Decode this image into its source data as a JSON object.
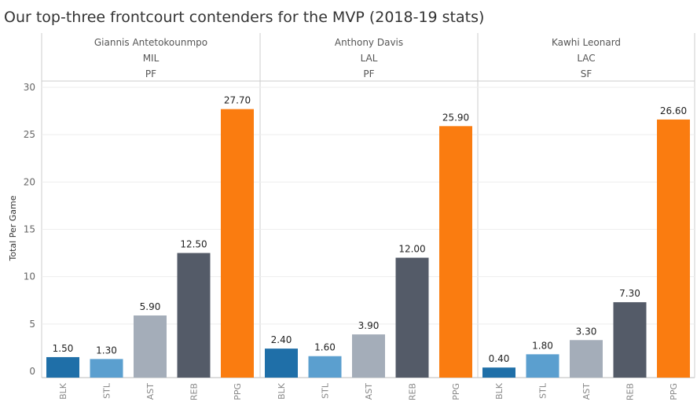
{
  "title": "Our top-three frontcourt contenders for the MVP (2018-19 stats)",
  "chart_data": {
    "type": "bar",
    "title": "Our top-three frontcourt contenders for the MVP (2018-19 stats)",
    "ylabel": "Total Per Game",
    "ylim": [
      0,
      30
    ],
    "yticks": [
      0,
      5,
      10,
      15,
      20,
      25,
      30
    ],
    "ytick_labels": [
      "0",
      "5",
      "10",
      "15",
      "20",
      "25",
      "30"
    ],
    "grid": true,
    "categories": [
      "BLK",
      "STL",
      "AST",
      "REB",
      "PPG"
    ],
    "colors": [
      "#1f6fa8",
      "#5b9fcf",
      "#a4adb9",
      "#545b68",
      "#fa7c10"
    ],
    "panels": [
      {
        "player": "Giannis Antetokounmpo",
        "team": "MIL",
        "position": "PF",
        "values": [
          1.5,
          1.3,
          5.9,
          12.5,
          27.7
        ],
        "labels": [
          "1.50",
          "1.30",
          "5.90",
          "12.50",
          "27.70"
        ]
      },
      {
        "player": "Anthony Davis",
        "team": "LAL",
        "position": "PF",
        "values": [
          2.4,
          1.6,
          3.9,
          12.0,
          25.9
        ],
        "labels": [
          "2.40",
          "1.60",
          "3.90",
          "12.00",
          "25.90"
        ]
      },
      {
        "player": "Kawhi Leonard",
        "team": "LAC",
        "position": "SF",
        "values": [
          0.4,
          1.8,
          3.3,
          7.3,
          26.6
        ],
        "labels": [
          "0.40",
          "1.80",
          "3.30",
          "7.30",
          "26.60"
        ]
      }
    ]
  }
}
